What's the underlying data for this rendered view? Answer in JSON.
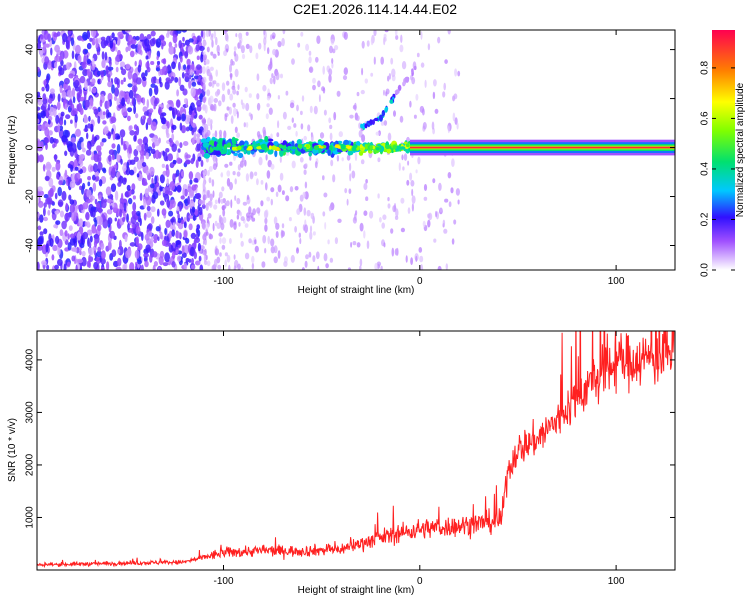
{
  "title": "C2E1.2026.114.14.44.E02",
  "chart_data": [
    {
      "type": "heatmap",
      "title": "C2E1.2026.114.14.44.E02",
      "xlabel": "Height of straight line (km)",
      "ylabel": "Frequency (Hz)",
      "xlim": [
        -195,
        130
      ],
      "ylim": [
        -50,
        48
      ],
      "xticks": [
        -100,
        0,
        100
      ],
      "yticks": [
        -40,
        -20,
        0,
        20,
        40
      ],
      "colorbar": {
        "label": "Normalized spectral amplitude",
        "range": [
          0,
          0.95
        ],
        "ticks": [
          0.0,
          0.2,
          0.4,
          0.6,
          0.8
        ]
      },
      "features": {
        "carrier_frequency_hz": 0,
        "carrier_start_km": -110,
        "noise_region_km": [
          -195,
          -110
        ],
        "drift_line": [
          {
            "x": -30,
            "y": 8
          },
          {
            "x": -20,
            "y": 12
          },
          {
            "x": -13,
            "y": 21
          },
          {
            "x": -1,
            "y": 34
          }
        ]
      }
    },
    {
      "type": "line",
      "xlabel": "Height of straight line (km)",
      "ylabel": "SNR (10 * v/v)",
      "xlim": [
        -195,
        130
      ],
      "ylim": [
        0,
        4550
      ],
      "xticks": [
        -100,
        0,
        100
      ],
      "yticks": [
        1000,
        2000,
        3000,
        4000
      ],
      "color": "#ff2020",
      "series": [
        {
          "name": "SNR",
          "x": [
            -195,
            -120,
            -100,
            -80,
            -60,
            -40,
            -20,
            0,
            20,
            40,
            42,
            45,
            50,
            55,
            60,
            70,
            80,
            90,
            100,
            110,
            120,
            130
          ],
          "y": [
            100,
            150,
            330,
            370,
            360,
            400,
            620,
            780,
            840,
            930,
            1050,
            1900,
            2300,
            2400,
            2500,
            2850,
            3300,
            3650,
            3950,
            4000,
            4050,
            4100
          ]
        }
      ]
    }
  ]
}
